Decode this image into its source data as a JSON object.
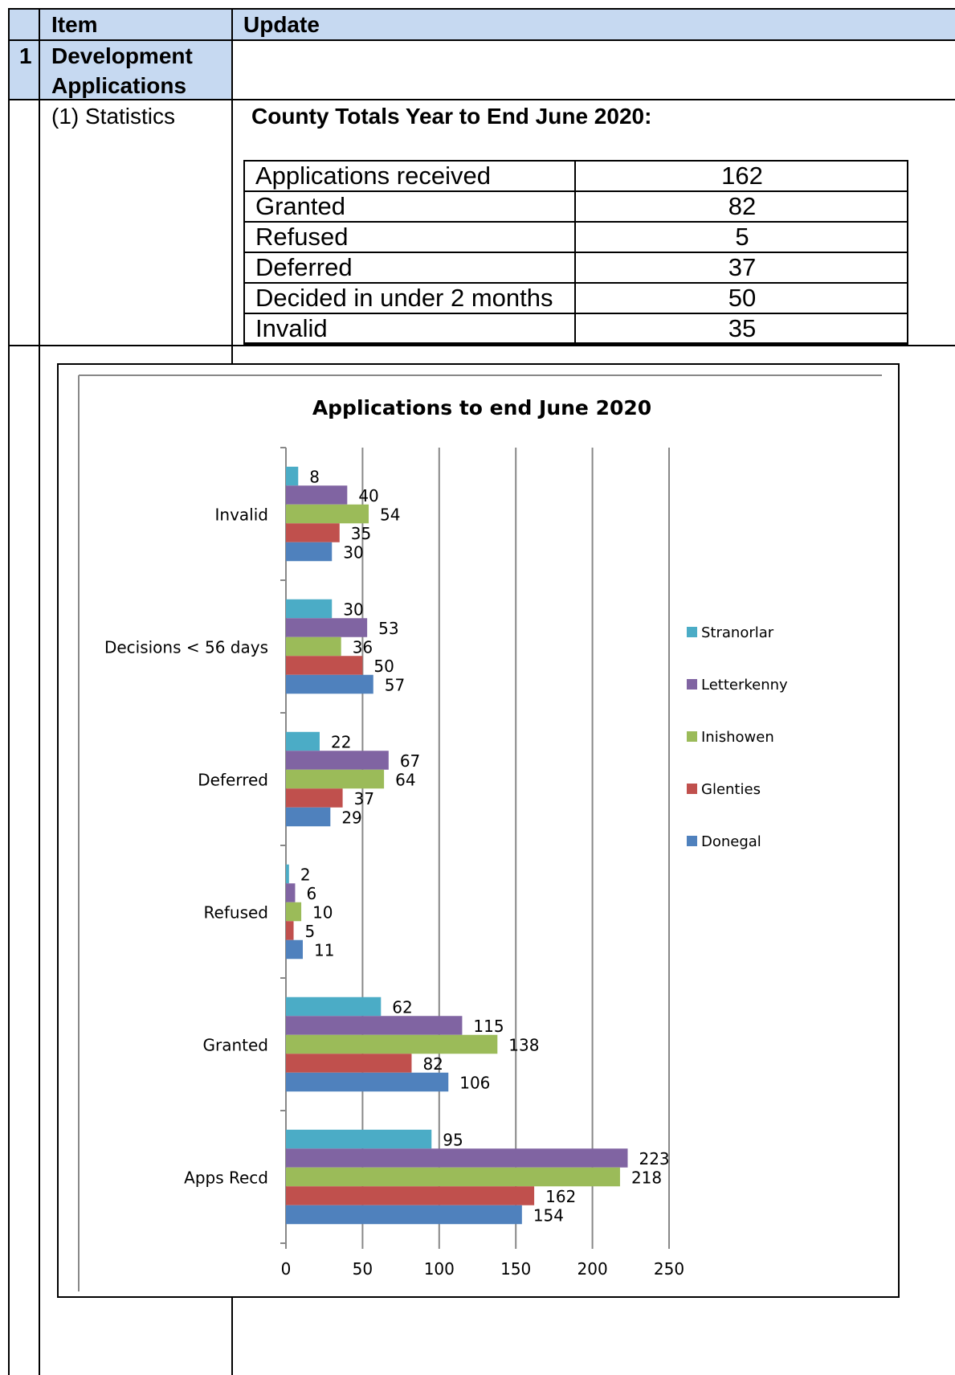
{
  "table": {
    "header": {
      "item": "Item",
      "update": "Update"
    },
    "row1": {
      "number": "1",
      "item_line1": "Development",
      "item_line2": "Applications"
    },
    "row2": {
      "item": "(1) Statistics",
      "heading": "County Totals Year to End June 2020:"
    }
  },
  "county_totals": [
    {
      "label": "Applications received",
      "value": "162"
    },
    {
      "label": "Granted",
      "value": "82"
    },
    {
      "label": "Refused",
      "value": "5"
    },
    {
      "label": "Deferred",
      "value": "37"
    },
    {
      "label": "Decided in under 2 months",
      "value": "50"
    },
    {
      "label": "Invalid",
      "value": "35"
    }
  ],
  "chart_data": {
    "type": "bar",
    "orientation": "horizontal",
    "title": "Applications to end June 2020",
    "categories": [
      "Invalid",
      "Decisions <  56 days",
      "Deferred",
      "Refused",
      "Granted",
      "Apps Recd"
    ],
    "series": [
      {
        "name": "Stranorlar",
        "color": "#4bacc6",
        "values": [
          8,
          30,
          22,
          2,
          62,
          95
        ]
      },
      {
        "name": "Letterkenny",
        "color": "#8064a2",
        "values": [
          40,
          53,
          67,
          6,
          115,
          223
        ]
      },
      {
        "name": "Inishowen",
        "color": "#9bbb59",
        "values": [
          54,
          36,
          64,
          10,
          138,
          218
        ]
      },
      {
        "name": "Glenties",
        "color": "#c0504d",
        "values": [
          35,
          50,
          37,
          5,
          82,
          162
        ]
      },
      {
        "name": "Donegal",
        "color": "#4f81bd",
        "values": [
          30,
          57,
          29,
          11,
          106,
          154
        ]
      }
    ],
    "xlim": [
      0,
      250
    ],
    "xticks": [
      "0",
      "50",
      "100",
      "150",
      "200",
      "250"
    ],
    "grid": true,
    "legend": "right"
  }
}
